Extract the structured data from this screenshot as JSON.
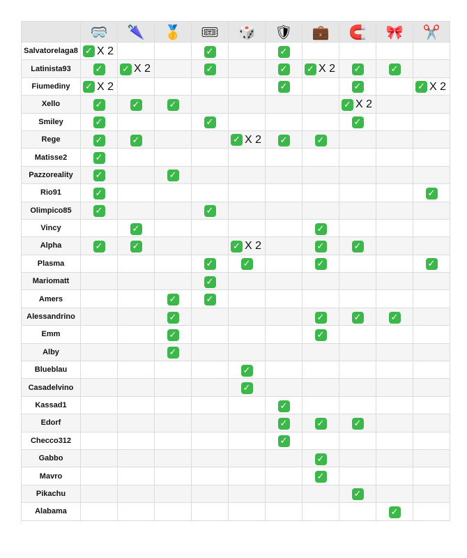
{
  "columns": [
    {
      "icon": "🥽",
      "icon_name": "goggles-icon"
    },
    {
      "icon": "🌂",
      "icon_name": "umbrella-icon"
    },
    {
      "icon": "🥇",
      "icon_name": "medal-icon"
    },
    {
      "icon": "🎟",
      "icon_name": "ticket-icon"
    },
    {
      "icon": "🎲",
      "icon_name": "dice-icon"
    },
    {
      "icon": "🛡",
      "icon_name": "shield-icon"
    },
    {
      "icon": "💼",
      "icon_name": "suitcase-icon"
    },
    {
      "icon": "🧲",
      "icon_name": "magnet-icon"
    },
    {
      "icon": "🎀",
      "icon_name": "ribbon-icon"
    },
    {
      "icon": "✂️",
      "icon_name": "scissors-icon"
    }
  ],
  "check_symbol": "✓",
  "rows": [
    {
      "name": "Salvatorelaga8",
      "cells": [
        "X 2",
        "",
        "",
        "✓",
        "",
        "✓",
        "",
        "",
        "",
        ""
      ]
    },
    {
      "name": "Latinista93",
      "cells": [
        "✓",
        "X 2",
        "",
        "✓",
        "",
        "✓",
        "X 2",
        "✓",
        "✓",
        ""
      ]
    },
    {
      "name": "Fiumediny",
      "cells": [
        "X 2",
        "",
        "",
        "",
        "",
        "✓",
        "",
        "✓",
        "",
        "X 2"
      ]
    },
    {
      "name": "Xello",
      "cells": [
        "✓",
        "✓",
        "✓",
        "",
        "",
        "",
        "",
        "X 2",
        "",
        ""
      ]
    },
    {
      "name": "Smiley",
      "cells": [
        "✓",
        "",
        "",
        "✓",
        "",
        "",
        "",
        "✓",
        "",
        ""
      ]
    },
    {
      "name": "Rege",
      "cells": [
        "✓",
        "✓",
        "",
        "",
        "X 2",
        "✓",
        "✓",
        "",
        "",
        ""
      ]
    },
    {
      "name": "Matisse2",
      "cells": [
        "✓",
        "",
        "",
        "",
        "",
        "",
        "",
        "",
        "",
        ""
      ]
    },
    {
      "name": "Pazzoreality",
      "cells": [
        "✓",
        "",
        "✓",
        "",
        "",
        "",
        "",
        "",
        "",
        ""
      ]
    },
    {
      "name": "Rio91",
      "cells": [
        "✓",
        "",
        "",
        "",
        "",
        "",
        "",
        "",
        "",
        "✓"
      ]
    },
    {
      "name": "Olimpico85",
      "cells": [
        "✓",
        "",
        "",
        "✓",
        "",
        "",
        "",
        "",
        "",
        ""
      ]
    },
    {
      "name": "Vincy",
      "cells": [
        "",
        "✓",
        "",
        "",
        "",
        "",
        "✓",
        "",
        "",
        ""
      ]
    },
    {
      "name": "Alpha",
      "cells": [
        "✓",
        "✓",
        "",
        "",
        "X 2",
        "",
        "✓",
        "✓",
        "",
        ""
      ]
    },
    {
      "name": "Plasma",
      "cells": [
        "",
        "",
        "",
        "✓",
        "✓",
        "",
        "✓",
        "",
        "",
        "✓"
      ]
    },
    {
      "name": "Mariomatt",
      "cells": [
        "",
        "",
        "",
        "✓",
        "",
        "",
        "",
        "",
        "",
        ""
      ]
    },
    {
      "name": "Amers",
      "cells": [
        "",
        "",
        "✓",
        "✓",
        "",
        "",
        "",
        "",
        "",
        ""
      ]
    },
    {
      "name": "Alessandrino",
      "cells": [
        "",
        "",
        "✓",
        "",
        "",
        "",
        "✓",
        "✓",
        "✓",
        ""
      ]
    },
    {
      "name": "Emm",
      "cells": [
        "",
        "",
        "✓",
        "",
        "",
        "",
        "✓",
        "",
        "",
        ""
      ]
    },
    {
      "name": "Alby",
      "cells": [
        "",
        "",
        "✓",
        "",
        "",
        "",
        "",
        "",
        "",
        ""
      ]
    },
    {
      "name": "Blueblau",
      "cells": [
        "",
        "",
        "",
        "",
        "✓",
        "",
        "",
        "",
        "",
        ""
      ]
    },
    {
      "name": "Casadelvino",
      "cells": [
        "",
        "",
        "",
        "",
        "✓",
        "",
        "",
        "",
        "",
        ""
      ]
    },
    {
      "name": "Kassad1",
      "cells": [
        "",
        "",
        "",
        "",
        "",
        "✓",
        "",
        "",
        "",
        ""
      ]
    },
    {
      "name": "Edorf",
      "cells": [
        "",
        "",
        "",
        "",
        "",
        "✓",
        "✓",
        "✓",
        "",
        ""
      ]
    },
    {
      "name": "Checco312",
      "cells": [
        "",
        "",
        "",
        "",
        "",
        "✓",
        "",
        "",
        "",
        ""
      ]
    },
    {
      "name": "Gabbo",
      "cells": [
        "",
        "",
        "",
        "",
        "",
        "",
        "✓",
        "",
        "",
        ""
      ]
    },
    {
      "name": "Mavro",
      "cells": [
        "",
        "",
        "",
        "",
        "",
        "",
        "✓",
        "",
        "",
        ""
      ]
    },
    {
      "name": "Pikachu",
      "cells": [
        "",
        "",
        "",
        "",
        "",
        "",
        "",
        "✓",
        "",
        ""
      ]
    },
    {
      "name": "Alabama",
      "cells": [
        "",
        "",
        "",
        "",
        "",
        "",
        "",
        "",
        "✓",
        ""
      ]
    }
  ]
}
